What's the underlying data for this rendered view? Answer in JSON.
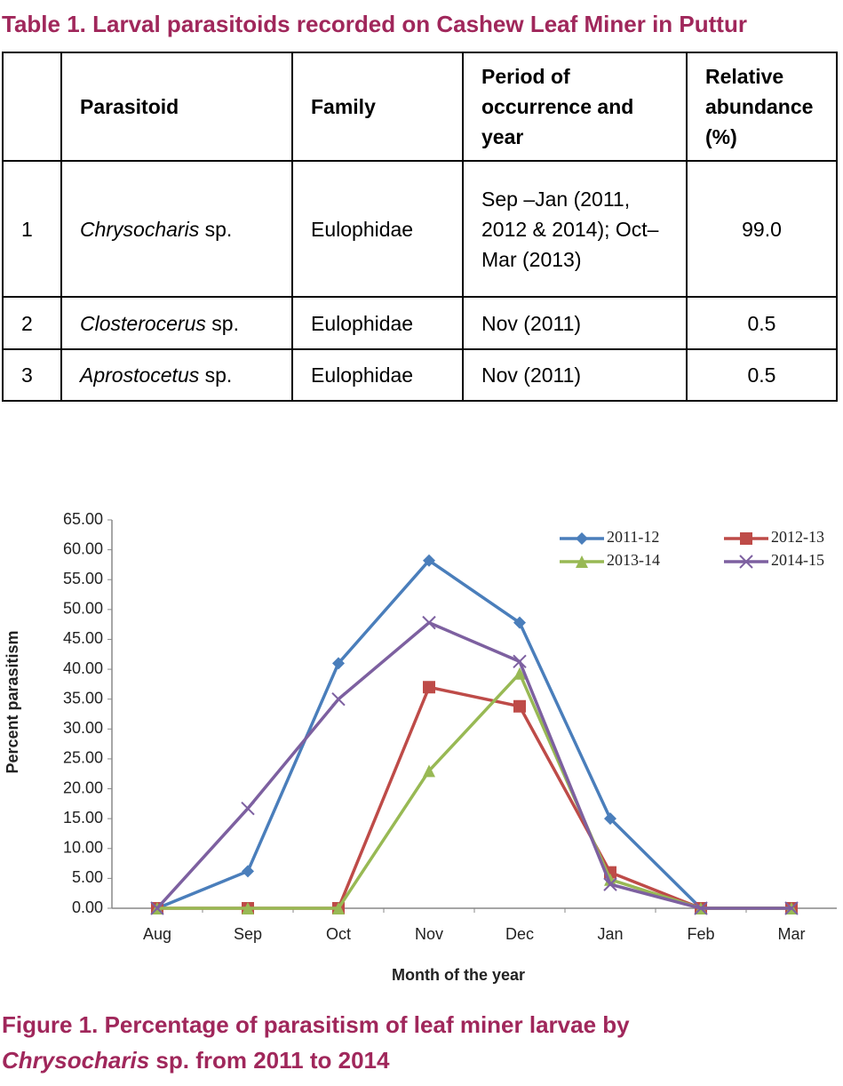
{
  "table_caption": "Table 1. Larval parasitoids recorded on Cashew Leaf Miner in Puttur",
  "table": {
    "header": [
      "Parasitoid",
      "Family",
      "Period of occurrence and year",
      "Relative abundance (%)"
    ],
    "rows": [
      {
        "no": "1",
        "name_italic": "Chrysocharis",
        "name_rest": "sp.",
        "family": "Eulophidae",
        "period": "Sep –Jan (2011, 2012 & 2014); Oct–Mar (2013)",
        "abundance": "99.0"
      },
      {
        "no": "2",
        "name_italic": "Closterocerus",
        "name_rest": "sp.",
        "family": "Eulophidae",
        "period": "Nov (2011)",
        "abundance": "0.5"
      },
      {
        "no": "3",
        "name_italic": "Aprostocetus",
        "name_rest": "sp.",
        "family": "Eulophidae",
        "period": "Nov (2011)",
        "abundance": "0.5"
      }
    ]
  },
  "chart_data": {
    "type": "line",
    "x_label": "Month of the year",
    "y_label": "Percent parasitism",
    "categories": [
      "Aug",
      "Sep",
      "Oct",
      "Nov",
      "Dec",
      "Jan",
      "Feb",
      "Mar"
    ],
    "ylim": [
      0,
      65
    ],
    "yticks": [
      {
        "value": 0,
        "label": "0.00"
      },
      {
        "value": 5,
        "label": "5.00"
      },
      {
        "value": 10,
        "label": "10.00"
      },
      {
        "value": 15,
        "label": "15.00"
      },
      {
        "value": 20,
        "label": "20.00"
      },
      {
        "value": 25,
        "label": "25.00"
      },
      {
        "value": 30,
        "label": "30.00"
      },
      {
        "value": 35,
        "label": "35.00"
      },
      {
        "value": 40,
        "label": "40.00"
      },
      {
        "value": 45,
        "label": "45.00"
      },
      {
        "value": 50,
        "label": "50.00"
      },
      {
        "value": 55,
        "label": "55.00"
      },
      {
        "value": 60,
        "label": "60.00"
      },
      {
        "value": 65,
        "label": "65.00"
      }
    ],
    "series": [
      {
        "name": "2011-12",
        "color": "#4a7ebb",
        "marker": "diamond",
        "values": [
          0,
          6.2,
          41,
          58.2,
          47.8,
          15,
          0,
          null
        ]
      },
      {
        "name": "2012-13",
        "color": "#be4b48",
        "marker": "square",
        "values": [
          0,
          0,
          0,
          37,
          33.8,
          6,
          0,
          0
        ]
      },
      {
        "name": "2013-14",
        "color": "#98b954",
        "marker": "triangle",
        "values": [
          0,
          0,
          0,
          23,
          39.3,
          4.8,
          0,
          0
        ]
      },
      {
        "name": "2014-15",
        "color": "#7d60a0",
        "marker": "x",
        "values": [
          0,
          16.7,
          35,
          47.8,
          41.3,
          4,
          0,
          0
        ]
      }
    ]
  },
  "figure_caption": {
    "line1": "Figure 1. Percentage of parasitism of leaf miner larvae by",
    "italic": "Chrysocharis",
    "rest": "sp. from 2011 to 2014"
  }
}
